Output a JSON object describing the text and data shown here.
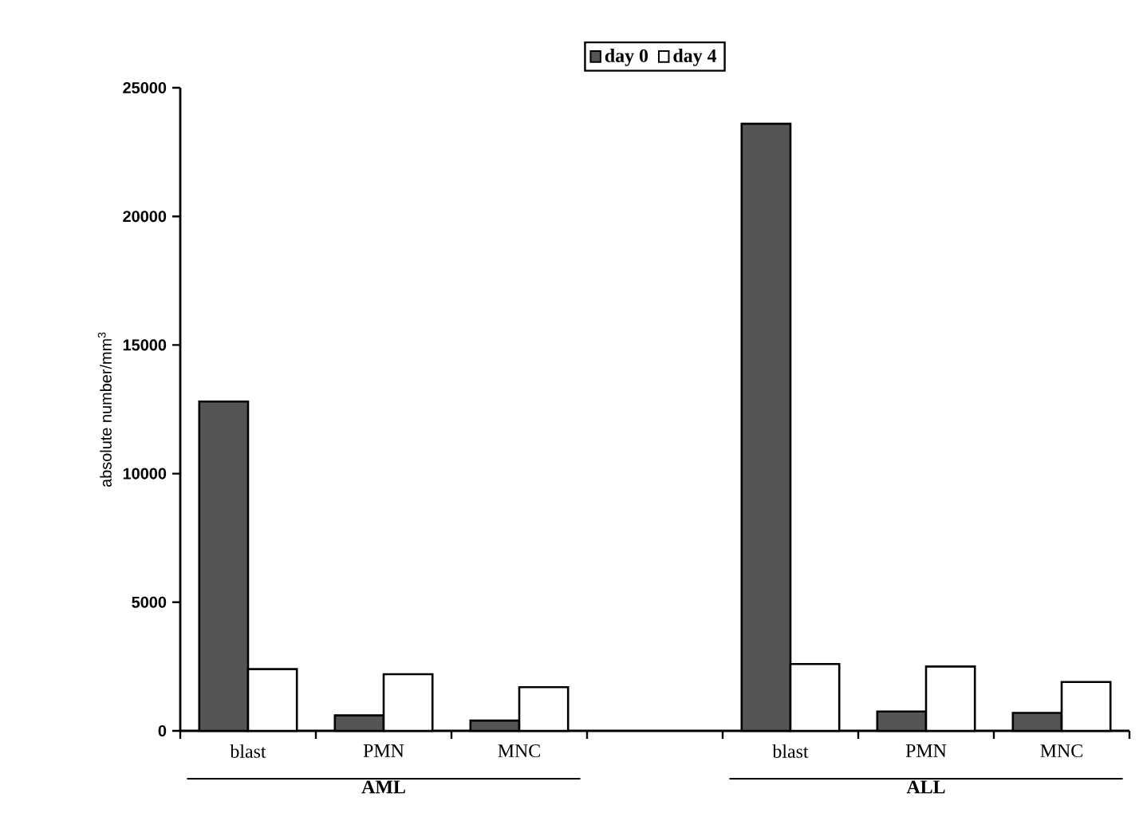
{
  "chart_data": {
    "type": "bar",
    "ylabel": "absolute number/mm$^{3}$",
    "categories": [
      "blast",
      "PMN",
      "MNC",
      null,
      "blast",
      "PMN",
      "MNC"
    ],
    "series": [
      {
        "name": "day 0",
        "color": "#555555",
        "values": [
          12800,
          600,
          400,
          null,
          23600,
          750,
          700
        ]
      },
      {
        "name": "day 4",
        "color": "#ffffff",
        "values": [
          2400,
          2200,
          1700,
          null,
          2600,
          2500,
          1900
        ]
      }
    ],
    "ylim": [
      0,
      25000
    ],
    "yticks": [
      0,
      5000,
      10000,
      15000,
      20000,
      25000
    ],
    "legend": "top",
    "grid": false,
    "annotations": [
      "AML",
      "ALL"
    ]
  }
}
